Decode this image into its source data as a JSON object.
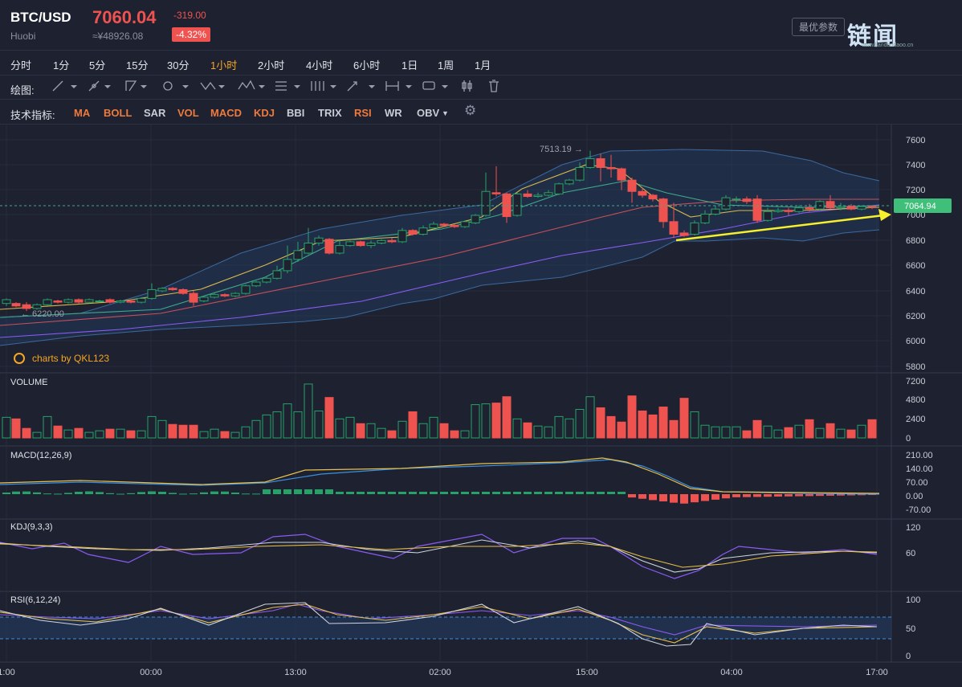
{
  "header": {
    "pair": "BTC/USD",
    "exchange": "Huobi",
    "price": "7060.04",
    "cny_price": "≈¥48926.08",
    "change": "-319.00",
    "change_pct": "-4.32%",
    "settings_label": "最优参数",
    "logo_text": "链闻",
    "logo_url": "www.liandaodaoo.cn"
  },
  "timeframes": [
    "分时",
    "1分",
    "5分",
    "15分",
    "30分",
    "1小时",
    "2小时",
    "4小时",
    "6小时",
    "1日",
    "1周",
    "1月"
  ],
  "active_timeframe": "1小时",
  "drawing": {
    "label": "绘图:"
  },
  "indicators": {
    "label": "技术指标:",
    "items": [
      "MA",
      "BOLL",
      "SAR",
      "VOL",
      "MACD",
      "KDJ",
      "BBI",
      "TRIX",
      "RSI",
      "WR",
      "OBV"
    ],
    "active": [
      "MA",
      "BOLL",
      "VOL",
      "MACD",
      "KDJ",
      "RSI"
    ]
  },
  "main_chart": {
    "y_ticks": [
      "7600",
      "7400",
      "7200",
      "7000",
      "6800",
      "6600",
      "6400",
      "6200",
      "6000",
      "5800"
    ],
    "high_label": "7513.19",
    "low_label": "6220.00",
    "last_price": "7064.94",
    "watermark": "charts by QKL123"
  },
  "volume": {
    "label": "VOLUME",
    "ticks": [
      "7200",
      "4800",
      "2400",
      "0"
    ]
  },
  "macd": {
    "label": "MACD(12,26,9)",
    "ticks": [
      "210.00",
      "140.00",
      "70.00",
      "0.00",
      "-70.00"
    ]
  },
  "kdj": {
    "label": "KDJ(9,3,3)",
    "ticks": [
      "120",
      "60"
    ]
  },
  "rsi": {
    "label": "RSI(6,12,24)",
    "ticks": [
      "100",
      "50",
      "0"
    ]
  },
  "x_axis": [
    "1:00",
    "00:00",
    "13:00",
    "02:00",
    "15:00",
    "04:00",
    "17:00"
  ],
  "colors": {
    "up": "#26a269",
    "down": "#ef5350",
    "accent": "#f5a623",
    "bg": "#1e2130"
  }
}
